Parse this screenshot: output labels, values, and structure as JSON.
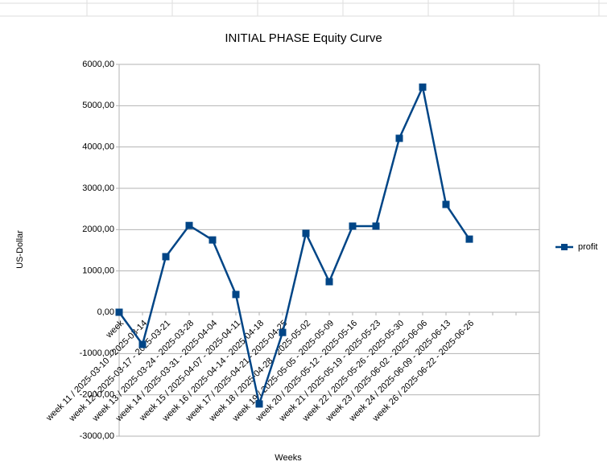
{
  "chart_data": {
    "type": "line",
    "title": "INITIAL PHASE Equity Curve",
    "x_label": "Weeks",
    "y_label": "US-Dollar",
    "categories": [
      "week",
      "week 11 / 2025-03-10 - 2025-03-14",
      "week 12 / 2025-03-17 - 2025-03-21",
      "week 13 / 2025-03-24 - 2025-03-28",
      "week 14 / 2025-03-31 - 2025-04-04",
      "week 15 / 2025-04-07 - 2025-04-11",
      "week 16 / 2025-04-14 - 2025-04-18",
      "week 17 / 2025-04-21 - 2025-04-25",
      "week 18 / 2025-04-28 - 2025-05-02",
      "week 19 / 2025-05-05 - 2025-05-09",
      "week 20 / 2025-05-12 - 2025-05-16",
      "week 21 / 2025-05-19 - 2025-05-23",
      "week 22 / 2025-05-26 - 2025-05-30",
      "week 23 / 2025-06-02 - 2025-06-06",
      "week 24 / 2025-06-09 - 2025-06-13",
      "week 26 / 2025-06-22 - 2025-06-26",
      null,
      null
    ],
    "series": [
      {
        "name": "profit",
        "color": "#004586",
        "values": [
          0,
          -780,
          1345,
          2100,
          1750,
          430,
          -2220,
          -490,
          1910,
          740,
          2085,
          2085,
          4210,
          5450,
          2610,
          1770,
          null,
          null
        ]
      }
    ],
    "ylim": [
      -3000,
      6000
    ],
    "yticks": [
      {
        "value": -3000,
        "label": "-3000,00"
      },
      {
        "value": -2000,
        "label": "-2000,00"
      },
      {
        "value": -1000,
        "label": "-1000,00"
      },
      {
        "value": 0,
        "label": "0,00"
      },
      {
        "value": 1000,
        "label": "1000,00"
      },
      {
        "value": 2000,
        "label": "2000,00"
      },
      {
        "value": 3000,
        "label": "3000,00"
      },
      {
        "value": 4000,
        "label": "4000,00"
      },
      {
        "value": 5000,
        "label": "5000,00"
      },
      {
        "value": 6000,
        "label": "6000,00"
      }
    ],
    "grid": true,
    "legend": "right"
  }
}
